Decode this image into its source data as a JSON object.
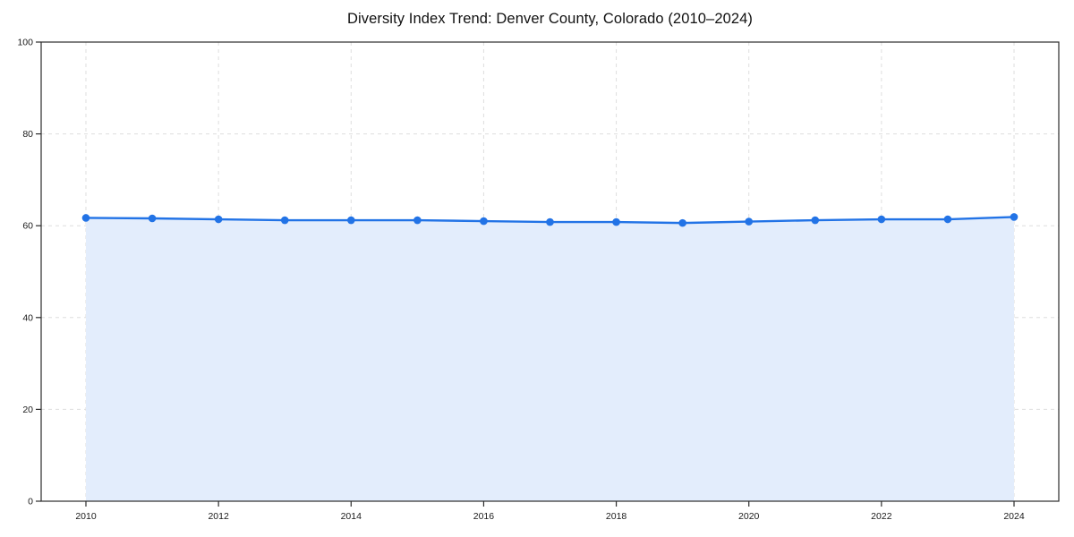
{
  "title": "Diversity Index Trend: Denver County, Colorado (2010–2024)",
  "colors": {
    "line": "#2273e6",
    "marker": "#2273e6",
    "area_fill": "#e3edfc",
    "grid": "#dedede",
    "axis": "#2b2b2b",
    "tick_text": "#1a1a1a",
    "background": "#ffffff"
  },
  "chart_data": {
    "type": "area",
    "title": "Diversity Index Trend: Denver County, Colorado (2010–2024)",
    "x": [
      2010,
      2011,
      2012,
      2013,
      2014,
      2015,
      2016,
      2017,
      2018,
      2019,
      2020,
      2021,
      2022,
      2023,
      2024
    ],
    "series": [
      {
        "name": "Diversity Index",
        "values": [
          61.7,
          61.6,
          61.4,
          61.2,
          61.2,
          61.2,
          61.0,
          60.8,
          60.8,
          60.6,
          60.9,
          61.2,
          61.4,
          61.4,
          61.9
        ]
      }
    ],
    "xlabel": "",
    "ylabel": "",
    "ylim": [
      0,
      100
    ],
    "yticks": [
      0,
      20,
      40,
      60,
      80,
      100
    ],
    "xticks": [
      2010,
      2012,
      2014,
      2016,
      2018,
      2020,
      2022,
      2024
    ],
    "grid": true,
    "grid_style": "dashed",
    "legend_position": "none",
    "marker": "circle",
    "area_baseline": 0
  }
}
